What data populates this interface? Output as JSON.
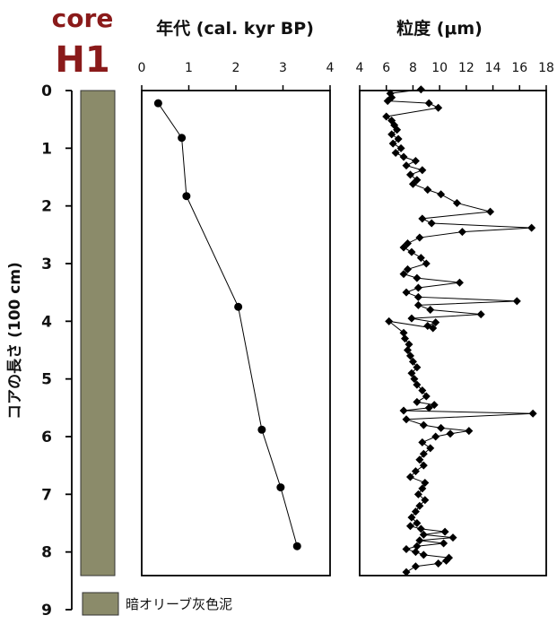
{
  "core_label": {
    "line1": "core",
    "line2": "H1"
  },
  "legend": {
    "label": "暗オリーブ灰色泥",
    "color": "#8b8b6a"
  },
  "colors": {
    "core_fill": "#8b8b6a",
    "frame": "#000000",
    "core_title": "#8a1a1a"
  },
  "chart_data": [
    {
      "type": "line",
      "title": "年代 (cal. kyr BP)",
      "xlabel": "年代 (cal. kyr BP)",
      "ylabel": "コアの長さ (100 cm)",
      "xlim": [
        0,
        4
      ],
      "xticks": [
        "0",
        "1",
        "2",
        "3",
        "4"
      ],
      "ylim": [
        0,
        9
      ],
      "yticks": [
        "0",
        "1",
        "2",
        "3",
        "4",
        "5",
        "6",
        "7",
        "8",
        "9"
      ],
      "y_inverted": true,
      "markers": "circle",
      "series": [
        {
          "x": [
            0.35,
            0.85,
            0.95,
            2.05,
            2.55,
            2.95,
            3.3
          ],
          "y": [
            0.22,
            0.82,
            1.83,
            3.75,
            5.88,
            6.88,
            7.9
          ]
        }
      ]
    },
    {
      "type": "line",
      "title": "粒度 (μm)",
      "xlabel": "粒度 (μm)",
      "ylabel": "コアの長さ (100 cm)",
      "xlim": [
        4,
        18
      ],
      "xticks": [
        "4",
        "6",
        "8",
        "10",
        "12",
        "14",
        "16",
        "18"
      ],
      "ylim": [
        0,
        9
      ],
      "y_inverted": true,
      "markers": "diamond",
      "series": [
        {
          "x": [
            8.6,
            6.3,
            6.4,
            6.1,
            9.2,
            9.9,
            6.0,
            6.4,
            6.6,
            6.8,
            6.4,
            6.9,
            6.5,
            7.1,
            6.7,
            7.3,
            8.2,
            7.5,
            8.7,
            7.8,
            8.3,
            8.0,
            9.1,
            10.1,
            11.3,
            13.8,
            8.7,
            9.4,
            16.9,
            11.7,
            8.5,
            7.6,
            7.3,
            7.9,
            8.6,
            9.0,
            7.6,
            7.3,
            8.3,
            11.5,
            8.4,
            7.5,
            8.4,
            15.8,
            8.4,
            9.3,
            13.1,
            7.9,
            9.7,
            9.1,
            9.5,
            6.2,
            7.3,
            7.4,
            7.7,
            7.6,
            7.8,
            8.0,
            8.3,
            7.9,
            8.1,
            8.3,
            8.7,
            9.0,
            8.3,
            9.6,
            9.2,
            7.3,
            17.0,
            7.5,
            8.8,
            10.1,
            12.2,
            10.8,
            9.7,
            8.7,
            9.3,
            8.8,
            8.5,
            8.8,
            8.2,
            7.8,
            8.9,
            8.7,
            8.4,
            8.9,
            8.5,
            8.2,
            7.9,
            8.3,
            7.8,
            8.6,
            10.4,
            8.8,
            11.0,
            8.5,
            10.3,
            8.3,
            7.5,
            8.2,
            8.8,
            10.7,
            10.5,
            9.9,
            8.2,
            7.5
          ],
          "y": [
            -0.02,
            0.05,
            0.12,
            0.18,
            0.22,
            0.3,
            0.45,
            0.52,
            0.6,
            0.68,
            0.76,
            0.84,
            0.92,
            1.0,
            1.08,
            1.15,
            1.22,
            1.3,
            1.38,
            1.46,
            1.55,
            1.62,
            1.72,
            1.8,
            1.95,
            2.1,
            2.22,
            2.3,
            2.38,
            2.45,
            2.55,
            2.65,
            2.72,
            2.8,
            2.9,
            3.0,
            3.1,
            3.18,
            3.25,
            3.33,
            3.42,
            3.5,
            3.58,
            3.65,
            3.72,
            3.8,
            3.88,
            3.95,
            4.02,
            4.08,
            4.12,
            4.0,
            4.2,
            4.3,
            4.4,
            4.5,
            4.6,
            4.7,
            4.8,
            4.9,
            5.0,
            5.1,
            5.2,
            5.3,
            5.4,
            5.45,
            5.5,
            5.55,
            5.6,
            5.7,
            5.8,
            5.85,
            5.9,
            5.95,
            6.0,
            6.1,
            6.2,
            6.3,
            6.4,
            6.5,
            6.6,
            6.7,
            6.8,
            6.9,
            7.0,
            7.1,
            7.2,
            7.3,
            7.4,
            7.5,
            7.55,
            7.6,
            7.65,
            7.7,
            7.75,
            7.8,
            7.85,
            7.9,
            7.95,
            8.0,
            8.05,
            8.1,
            8.15,
            8.2,
            8.25,
            8.35
          ]
        }
      ]
    }
  ]
}
